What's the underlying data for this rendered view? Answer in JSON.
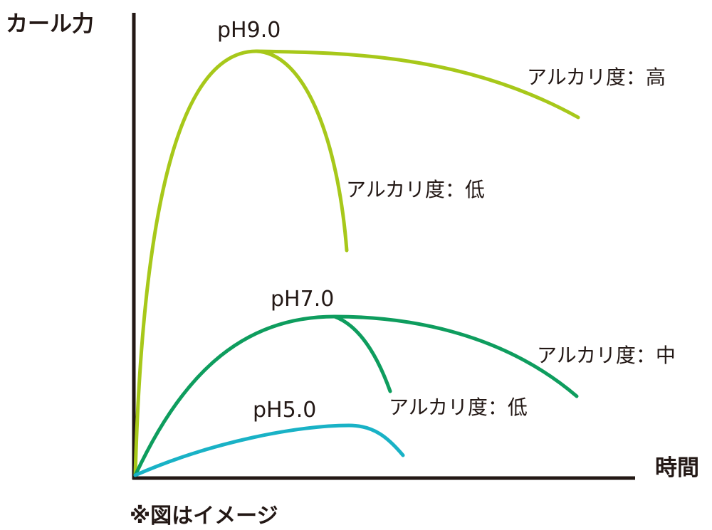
{
  "chart_data": {
    "type": "line",
    "ylabel": "カール力",
    "xlabel": "時間",
    "note": "※図はイメージ",
    "colors": {
      "axis": "#231815",
      "ph90": "#a7c81a",
      "ph70": "#0e9d5e",
      "ph50": "#19b2c6"
    },
    "groups": [
      {
        "name": "pH9.0",
        "color_key": "ph90",
        "branches": [
          {
            "label": "アルカリ度：高",
            "end": "high"
          },
          {
            "label": "アルカリ度：低",
            "end": "low"
          }
        ]
      },
      {
        "name": "pH7.0",
        "color_key": "ph70",
        "branches": [
          {
            "label": "アルカリ度：中",
            "end": "high"
          },
          {
            "label": "アルカリ度：低",
            "end": "low"
          }
        ]
      },
      {
        "name": "pH5.0",
        "color_key": "ph50",
        "branches": []
      }
    ]
  }
}
